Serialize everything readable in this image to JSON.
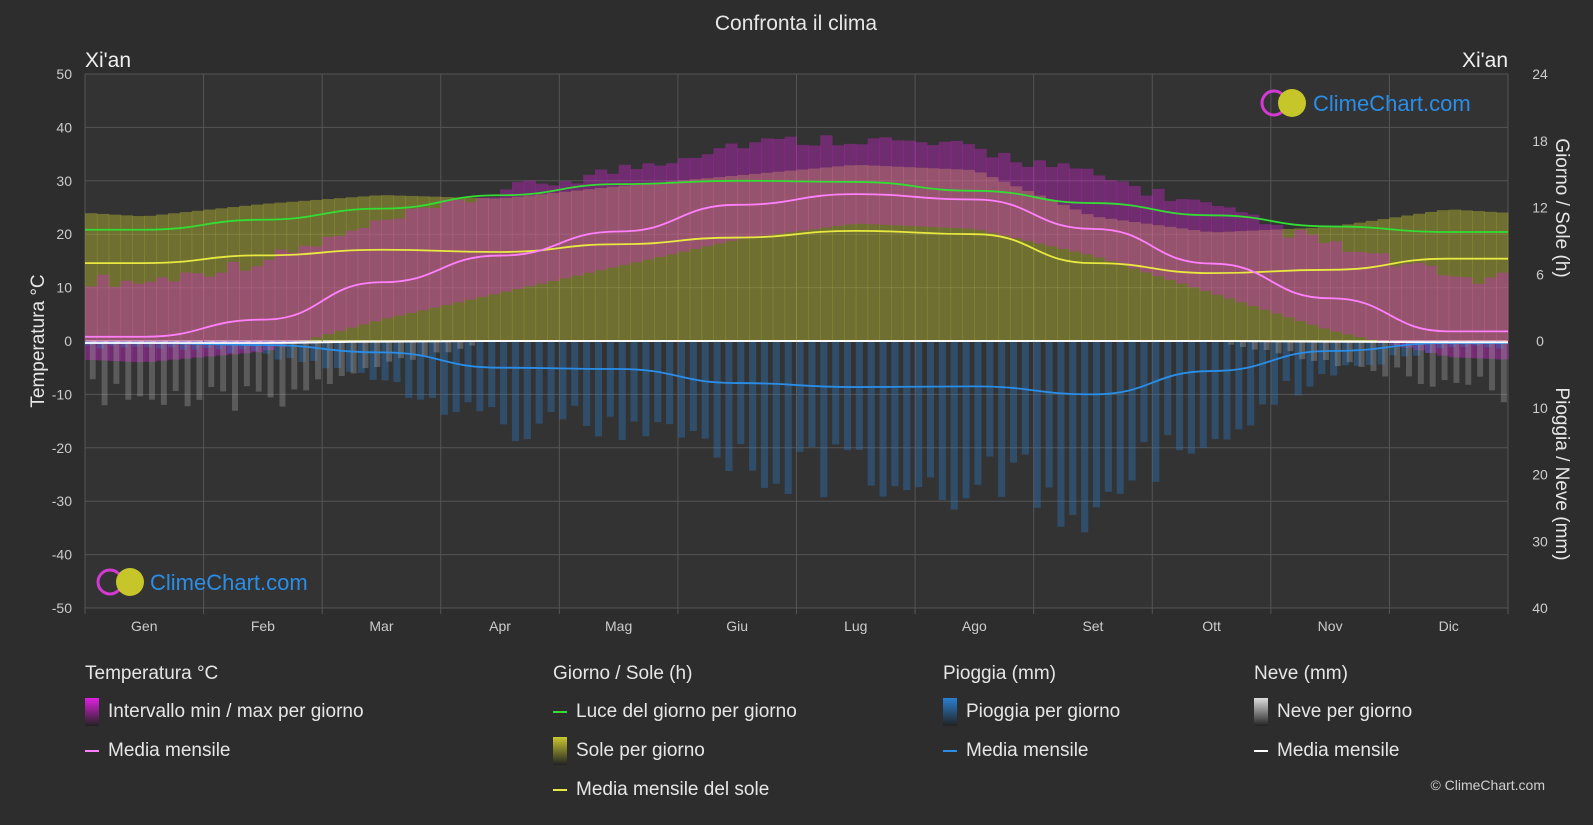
{
  "title": "Confronta il clima",
  "city_left": "Xi'an",
  "city_right": "Xi'an",
  "logo_text": "ClimeChart.com",
  "copyright": "© ClimeChart.com",
  "colors": {
    "background": "#2d2d2d",
    "temp_range": "#e020e0",
    "temp_mean": "#ff80ff",
    "daylight": "#33dd33",
    "sunshine": "#b8b830",
    "sunshine_mean": "#e8e840",
    "rain": "#2a7fd0",
    "rain_mean": "#2a8ee8",
    "snow": "#bbbbbb",
    "snow_mean": "#ffffff"
  },
  "legend": [
    {
      "title": "Temperatura °C",
      "items": [
        {
          "label": "Intervallo min / max per giorno",
          "icon": "box",
          "color": "#e020e0"
        },
        {
          "label": "Media mensile",
          "icon": "line",
          "color": "#ff80ff"
        }
      ]
    },
    {
      "title": "Giorno / Sole (h)",
      "items": [
        {
          "label": "Luce del giorno per giorno",
          "icon": "line",
          "color": "#33dd33"
        },
        {
          "label": "Sole per giorno",
          "icon": "box",
          "color": "#c8c830"
        },
        {
          "label": "Media mensile del sole",
          "icon": "line",
          "color": "#e8e840"
        }
      ]
    },
    {
      "title": "Pioggia (mm)",
      "items": [
        {
          "label": "Pioggia per giorno",
          "icon": "box",
          "color": "#2a7fd0"
        },
        {
          "label": "Media mensile",
          "icon": "line",
          "color": "#2a8ee8"
        }
      ]
    },
    {
      "title": "Neve (mm)",
      "items": [
        {
          "label": "Neve per giorno",
          "icon": "box",
          "color": "#dddddd"
        },
        {
          "label": "Media mensile",
          "icon": "line",
          "color": "#ffffff"
        }
      ]
    }
  ],
  "chart_data": {
    "type": "line",
    "title": "Confronta il clima",
    "months": [
      "Gen",
      "Feb",
      "Mar",
      "Apr",
      "Mag",
      "Giu",
      "Lug",
      "Ago",
      "Set",
      "Ott",
      "Nov",
      "Dic"
    ],
    "left_axis": {
      "label": "Temperatura °C",
      "min": -50,
      "max": 50,
      "ticks": [
        50,
        40,
        30,
        20,
        10,
        0,
        -10,
        -20,
        -30,
        -40,
        -50
      ]
    },
    "right_axis_top": {
      "label": "Giorno / Sole (h)",
      "min": 0,
      "max": 24,
      "ticks": [
        24,
        18,
        12,
        6,
        0
      ]
    },
    "right_axis_bottom": {
      "label": "Pioggia / Neve (mm)",
      "min": 0,
      "max": 40,
      "ticks": [
        0,
        10,
        20,
        30,
        40
      ]
    },
    "grid": true,
    "series": [
      {
        "name": "Media mensile",
        "group": "temperature",
        "unit": "°C",
        "values": [
          0.8,
          4.0,
          11.0,
          16.0,
          20.5,
          25.5,
          27.5,
          26.5,
          21.0,
          14.5,
          8.0,
          1.8
        ]
      },
      {
        "name": "Luce del giorno per giorno",
        "group": "daylight",
        "unit": "h",
        "values": [
          10.0,
          10.9,
          11.9,
          13.1,
          14.1,
          14.4,
          14.3,
          13.5,
          12.4,
          11.3,
          10.3,
          9.8
        ]
      },
      {
        "name": "Media mensile del sole",
        "group": "sunshine",
        "unit": "h",
        "values": [
          7.0,
          7.7,
          8.2,
          8.0,
          8.7,
          9.3,
          9.9,
          9.6,
          7.0,
          6.1,
          6.4,
          7.4
        ]
      },
      {
        "name": "Media mensile",
        "group": "rain",
        "unit": "mm",
        "values": [
          0.3,
          0.6,
          1.7,
          4.0,
          4.2,
          6.3,
          6.9,
          6.8,
          8.0,
          4.5,
          1.5,
          0.3
        ]
      },
      {
        "name": "Media mensile",
        "group": "snow",
        "unit": "mm",
        "values": [
          0.3,
          0.3,
          0.1,
          0,
          0,
          0,
          0,
          0,
          0,
          0,
          0.1,
          0.2
        ]
      }
    ],
    "temp_range_band": {
      "min": [
        -4,
        -2,
        4,
        9,
        14,
        19,
        22,
        21,
        16,
        9,
        2,
        -3
      ],
      "max": [
        6,
        10,
        17,
        23,
        27,
        32,
        33,
        31,
        26,
        20,
        13,
        7
      ]
    }
  }
}
